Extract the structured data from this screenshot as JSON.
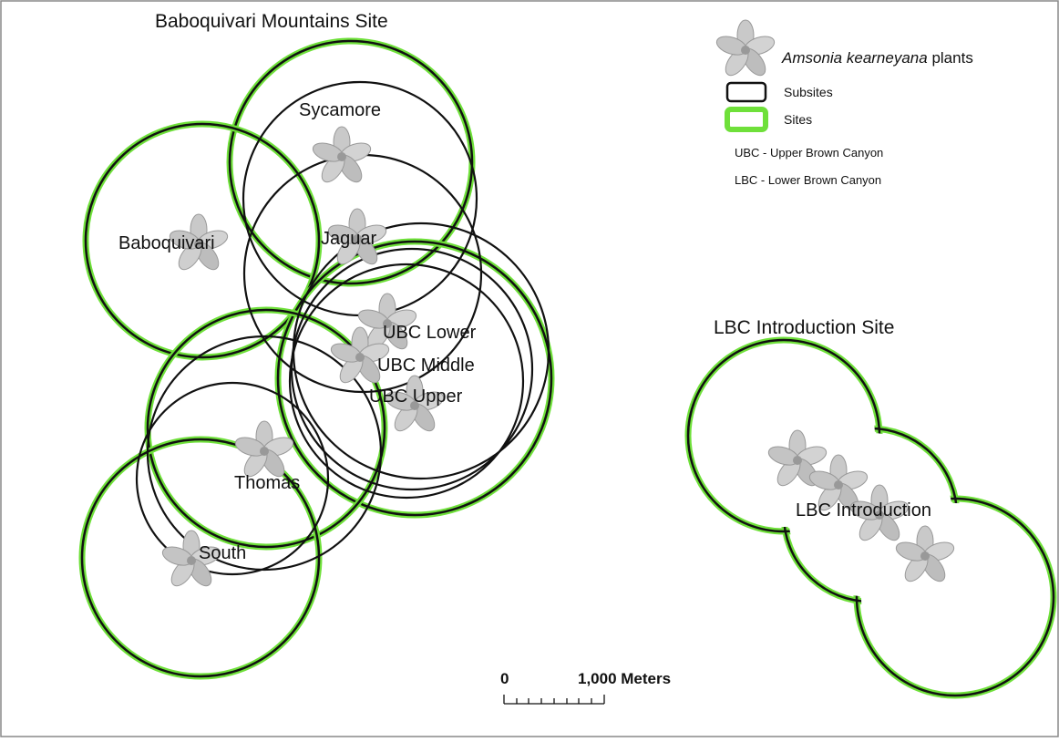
{
  "sites": [
    {
      "title": "Baboquivari Mountains Site"
    },
    {
      "title": "LBC Introduction Site"
    }
  ],
  "labels": [
    "Sycamore",
    "Baboquivari",
    "Jaguar",
    "UBC Lower",
    "UBC Middle",
    "UBC Upper",
    "Thomas",
    "South",
    "LBC Introduction"
  ],
  "legend": {
    "plants_species": "Amsonia kearneyana",
    "plants_suffix": "plants",
    "subsites": "Subsites",
    "sites": "Sites",
    "notes": [
      "UBC - Upper Brown Canyon",
      "LBC - Lower Brown Canyon"
    ]
  },
  "scale_bar": {
    "start": "0",
    "end": "1,000 Meters"
  }
}
